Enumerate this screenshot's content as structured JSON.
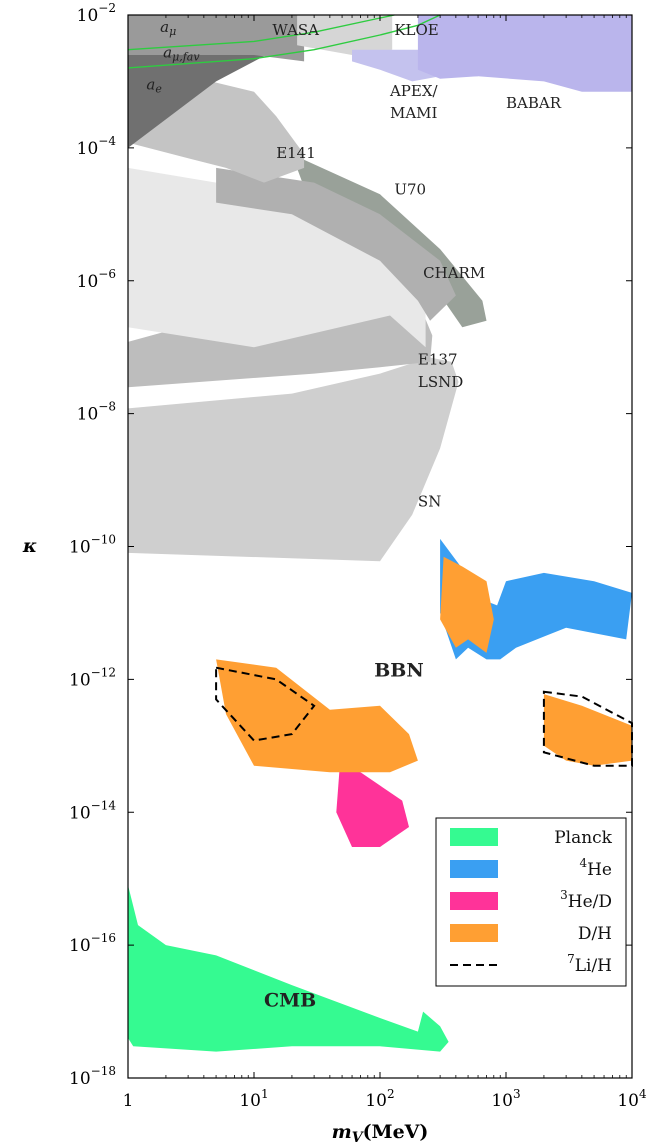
{
  "chart_data": {
    "type": "area",
    "title": "",
    "xlabel": "m_V (MeV)",
    "ylabel": "κ",
    "x_scale": "log",
    "y_scale": "log",
    "xlim": [
      1,
      10000
    ],
    "ylim": [
      1e-18,
      0.01
    ],
    "grid": false,
    "legend_position": "bottom-right",
    "x_ticks": [
      {
        "value": 1,
        "mantissa": "1",
        "exp": ""
      },
      {
        "value": 10,
        "mantissa": "10",
        "exp": "1"
      },
      {
        "value": 100,
        "mantissa": "10",
        "exp": "2"
      },
      {
        "value": 1000,
        "mantissa": "10",
        "exp": "3"
      },
      {
        "value": 10000,
        "mantissa": "10",
        "exp": "4"
      }
    ],
    "y_ticks": [
      {
        "value": 0.01,
        "mantissa": "10",
        "exp": "−2"
      },
      {
        "value": 0.0001,
        "mantissa": "10",
        "exp": "−4"
      },
      {
        "value": 1e-06,
        "mantissa": "10",
        "exp": "−6"
      },
      {
        "value": 1e-08,
        "mantissa": "10",
        "exp": "−8"
      },
      {
        "value": 1e-10,
        "mantissa": "10",
        "exp": "−10"
      },
      {
        "value": 1e-12,
        "mantissa": "10",
        "exp": "−12"
      },
      {
        "value": 1e-14,
        "mantissa": "10",
        "exp": "−14"
      },
      {
        "value": 1e-16,
        "mantissa": "10",
        "exp": "−16"
      },
      {
        "value": 1e-18,
        "mantissa": "10",
        "exp": "−18"
      }
    ],
    "excluded_regions": [
      {
        "name": "SN",
        "color": "#cfcfcf",
        "label_at": [
          350,
          3e-10
        ],
        "points": [
          [
            1,
            8e-11
          ],
          [
            100,
            6e-11
          ],
          [
            180,
            3e-10
          ],
          [
            300,
            3e-09
          ],
          [
            420,
            3e-08
          ],
          [
            370,
            6e-08
          ],
          [
            250,
            7e-08
          ],
          [
            100,
            4e-08
          ],
          [
            20,
            2e-08
          ],
          [
            1,
            1.2e-08
          ]
        ]
      },
      {
        "name": "E137",
        "color": "#bdbdbd",
        "label_at": [
          270,
          4e-08
        ],
        "points": [
          [
            1,
            1.2e-07
          ],
          [
            10,
            4e-07
          ],
          [
            100,
            8e-07
          ],
          [
            200,
            5e-07
          ],
          [
            260,
            1.5e-07
          ],
          [
            250,
            6e-08
          ],
          [
            100,
            5e-08
          ],
          [
            30,
            4e-08
          ],
          [
            1,
            2.5e-08
          ]
        ]
      },
      {
        "name": "LSND",
        "color": "#e8e8e8",
        "label_at": [
          270,
          1.5e-08
        ],
        "points": [
          [
            1,
            5e-05
          ],
          [
            5,
            3e-05
          ],
          [
            30,
            2e-05
          ],
          [
            100,
            1e-05
          ],
          [
            200,
            3e-06
          ],
          [
            230,
            1e-06
          ],
          [
            230,
            1e-07
          ],
          [
            120,
            3e-07
          ],
          [
            10,
            1e-07
          ],
          [
            1,
            2e-07
          ]
        ]
      },
      {
        "name": "CHARM",
        "color": "#99a199",
        "label_at": [
          320,
          1.2e-06
        ],
        "points": [
          [
            20,
            8e-05
          ],
          [
            100,
            2e-05
          ],
          [
            300,
            3e-06
          ],
          [
            650,
            5e-07
          ],
          [
            700,
            2.5e-07
          ],
          [
            450,
            2e-07
          ],
          [
            250,
            1e-06
          ],
          [
            100,
            3e-06
          ],
          [
            30,
            1e-05
          ]
        ]
      },
      {
        "name": "U70",
        "color": "#b0b0b0",
        "label_at": [
          160,
          7e-06
        ],
        "points": [
          [
            5,
            5e-05
          ],
          [
            30,
            3e-05
          ],
          [
            100,
            1e-05
          ],
          [
            300,
            2e-06
          ],
          [
            400,
            6e-07
          ],
          [
            250,
            2.5e-07
          ],
          [
            200,
            5e-07
          ],
          [
            100,
            2e-06
          ],
          [
            20,
            1e-05
          ],
          [
            5,
            1.5e-05
          ]
        ]
      },
      {
        "name": "E141",
        "color": "#c4c4c4",
        "label_at": [
          22,
          6e-05
        ],
        "points": [
          [
            1,
            0.00012
          ],
          [
            3,
            7e-05
          ],
          [
            6,
            5e-05
          ],
          [
            12,
            3e-05
          ],
          [
            25,
            5e-05
          ],
          [
            25,
            8e-05
          ],
          [
            15,
            0.0003
          ],
          [
            10,
            0.0007
          ],
          [
            1,
            0.002
          ]
        ]
      },
      {
        "name": "a_e",
        "color": "#707070",
        "label_at": [
          4,
          0.0007
        ],
        "points": [
          [
            1,
            0.0001
          ],
          [
            5,
            0.001
          ],
          [
            15,
            0.003
          ],
          [
            25,
            0.004
          ],
          [
            1,
            0.003
          ]
        ]
      },
      {
        "name": "a_mu",
        "color": "#9a9a9a",
        "label_at": [
          5,
          0.005
        ],
        "points": [
          [
            1,
            0.01
          ],
          [
            25,
            0.01
          ],
          [
            25,
            0.002
          ],
          [
            10,
            0.0025
          ],
          [
            1,
            0.0025
          ]
        ]
      },
      {
        "name": "WASA",
        "color": "#d6d6d6",
        "label_at": [
          26,
          0.005
        ],
        "points": [
          [
            22,
            0.01
          ],
          [
            125,
            0.01
          ],
          [
            125,
            0.003
          ],
          [
            60,
            0.0025
          ],
          [
            22,
            0.0035
          ]
        ]
      },
      {
        "name": "KLOE",
        "color": "#777777",
        "label_at": [
          180,
          0.005
        ],
        "points": [
          [
            240,
            0.009
          ],
          [
            290,
            0.009
          ],
          [
            280,
            0.0025
          ],
          [
            260,
            0.0018
          ],
          [
            240,
            0.0022
          ]
        ]
      },
      {
        "name": "APEX/MAMI",
        "color": "#c4c2ee",
        "label_at": [
          120,
          0.0003
        ],
        "points": [
          [
            60,
            0.003
          ],
          [
            600,
            0.003
          ],
          [
            600,
            0.0012
          ],
          [
            300,
            0.0012
          ],
          [
            180,
            0.001
          ],
          [
            100,
            0.0015
          ],
          [
            60,
            0.002
          ]
        ]
      },
      {
        "name": "BABAR",
        "color": "#bab5ec",
        "label_at": [
          1100,
          0.0006
        ],
        "points": [
          [
            200,
            0.01
          ],
          [
            10000,
            0.01
          ],
          [
            10000,
            0.0007
          ],
          [
            4000,
            0.0007
          ],
          [
            2000,
            0.001
          ],
          [
            600,
            0.0012
          ],
          [
            300,
            0.0011
          ],
          [
            200,
            0.0015
          ]
        ]
      }
    ],
    "band_lines": [
      {
        "name": "a_mu_fav",
        "label": "a_{μ,fav}",
        "color": "#2ecc40",
        "label_at": [
          4,
          0.0022
        ],
        "points": [
          [
            1,
            0.003
          ],
          [
            10,
            0.004
          ],
          [
            30,
            0.0055
          ],
          [
            100,
            0.009
          ],
          [
            130,
            0.01
          ]
        ]
      },
      {
        "name": "a_mu_fav_low",
        "label": "",
        "color": "#2ecc40",
        "label_at": null,
        "points": [
          [
            1,
            0.0016
          ],
          [
            10,
            0.0022
          ],
          [
            30,
            0.003
          ],
          [
            100,
            0.005
          ],
          [
            200,
            0.007
          ],
          [
            300,
            0.01
          ]
        ]
      }
    ],
    "region_text": {
      "a_mu": "a",
      "a_mu_sub": "μ",
      "a_mu_fav": "a",
      "a_mu_fav_sub": "μ,fav",
      "a_e": "a",
      "a_e_sub": "e",
      "wasa": "WASA",
      "kloe": "KLOE",
      "apex": "APEX/",
      "mami": "MAMI",
      "babar": "BABAR",
      "e141": "E141",
      "u70": "U70",
      "charm": "CHARM",
      "e137": "E137",
      "lsnd": "LSND",
      "sn": "SN",
      "bbn": "BBN",
      "cmb": "CMB"
    },
    "series": [
      {
        "name": "Planck",
        "color": "#35fa91",
        "style": "fill",
        "points": [
          [
            1,
            8e-16
          ],
          [
            1.2,
            2e-16
          ],
          [
            2,
            1e-16
          ],
          [
            5,
            7e-17
          ],
          [
            20,
            2.5e-17
          ],
          [
            100,
            8e-18
          ],
          [
            200,
            5e-18
          ],
          [
            220,
            1e-17
          ],
          [
            300,
            6e-18
          ],
          [
            350,
            3.5e-18
          ],
          [
            300,
            2.5e-18
          ],
          [
            100,
            3e-18
          ],
          [
            20,
            3e-18
          ],
          [
            5,
            2.5e-18
          ],
          [
            1.1,
            3e-18
          ],
          [
            1,
            4e-18
          ]
        ]
      },
      {
        "name": "⁴He",
        "color": "#3a9ff2",
        "style": "fill",
        "points": [
          [
            300,
            1.3e-10
          ],
          [
            700,
            1.5e-11
          ],
          [
            850,
            1.3e-11
          ],
          [
            1000,
            3e-11
          ],
          [
            2000,
            4e-11
          ],
          [
            5000,
            3e-11
          ],
          [
            10000,
            2e-11
          ],
          [
            9000,
            4e-12
          ],
          [
            3000,
            6e-12
          ],
          [
            1200,
            3e-12
          ],
          [
            900,
            2e-12
          ],
          [
            700,
            2e-12
          ],
          [
            500,
            3e-12
          ],
          [
            400,
            2e-12
          ],
          [
            300,
            1e-11
          ]
        ]
      },
      {
        "name": "³He/D",
        "color": "#ff3399",
        "style": "fill",
        "points": [
          [
            6.5,
            1.2e-12
          ],
          [
            10,
            6e-13
          ],
          [
            15,
            3.5e-13
          ],
          [
            11,
            2e-13
          ],
          [
            8,
            2.5e-13
          ],
          [
            6,
            6e-13
          ]
        ]
      },
      {
        "name": "³He/D (lower)",
        "color": "#ff3399",
        "style": "fill",
        "points": [
          [
            48,
            5e-14
          ],
          [
            70,
            4e-14
          ],
          [
            150,
            1.5e-14
          ],
          [
            170,
            6e-15
          ],
          [
            100,
            3e-15
          ],
          [
            60,
            3e-15
          ],
          [
            45,
            1e-14
          ]
        ]
      },
      {
        "name": "D/H",
        "color": "#ff9f33",
        "style": "fill",
        "points": [
          [
            5,
            2e-12
          ],
          [
            15,
            1.5e-12
          ],
          [
            40,
            3.5e-13
          ],
          [
            100,
            4e-13
          ],
          [
            170,
            1.5e-13
          ],
          [
            200,
            6e-14
          ],
          [
            120,
            4e-14
          ],
          [
            40,
            4e-14
          ],
          [
            10,
            5e-14
          ],
          [
            6,
            3e-13
          ]
        ]
      },
      {
        "name": "D/H (upper)",
        "color": "#ff9f33",
        "style": "fill",
        "points": [
          [
            320,
            7e-11
          ],
          [
            450,
            5e-11
          ],
          [
            700,
            3e-11
          ],
          [
            800,
            8e-12
          ],
          [
            700,
            2.5e-12
          ],
          [
            500,
            4e-12
          ],
          [
            400,
            3e-12
          ],
          [
            300,
            8e-12
          ]
        ]
      },
      {
        "name": "D/H (right)",
        "color": "#ff9f33",
        "style": "fill",
        "points": [
          [
            2000,
            6e-13
          ],
          [
            4000,
            4e-13
          ],
          [
            10000,
            2e-13
          ],
          [
            10000,
            6e-14
          ],
          [
            5000,
            5e-14
          ],
          [
            3000,
            6e-14
          ],
          [
            2000,
            1e-13
          ]
        ]
      },
      {
        "name": "⁷Li/H",
        "color": "#000000",
        "style": "dashed",
        "points": [
          [
            5,
            1.5e-12
          ],
          [
            15,
            1e-12
          ],
          [
            30,
            4e-13
          ],
          [
            20,
            1.5e-13
          ],
          [
            10,
            1.2e-13
          ],
          [
            5,
            5e-13
          ],
          [
            5,
            1.5e-12
          ]
        ]
      },
      {
        "name": "⁷Li/H (right)",
        "color": "#000000",
        "style": "dashed",
        "points": [
          [
            2000,
            6.5e-13
          ],
          [
            4000,
            5.5e-13
          ],
          [
            10000,
            2.2e-13
          ],
          [
            10000,
            5e-14
          ],
          [
            5000,
            5e-14
          ],
          [
            2000,
            8e-14
          ],
          [
            2000,
            6.5e-13
          ]
        ]
      }
    ],
    "legend": [
      {
        "label": "Planck",
        "sup": "",
        "kind": "fill",
        "color": "#35fa91"
      },
      {
        "label": "He",
        "sup": "4",
        "kind": "fill",
        "color": "#3a9ff2"
      },
      {
        "label": "He/D",
        "sup": "3",
        "kind": "fill",
        "color": "#ff3399"
      },
      {
        "label": "D/H",
        "sup": "",
        "kind": "fill",
        "color": "#ff9f33"
      },
      {
        "label": "Li/H",
        "sup": "7",
        "kind": "dashed",
        "color": "#000000"
      }
    ]
  }
}
